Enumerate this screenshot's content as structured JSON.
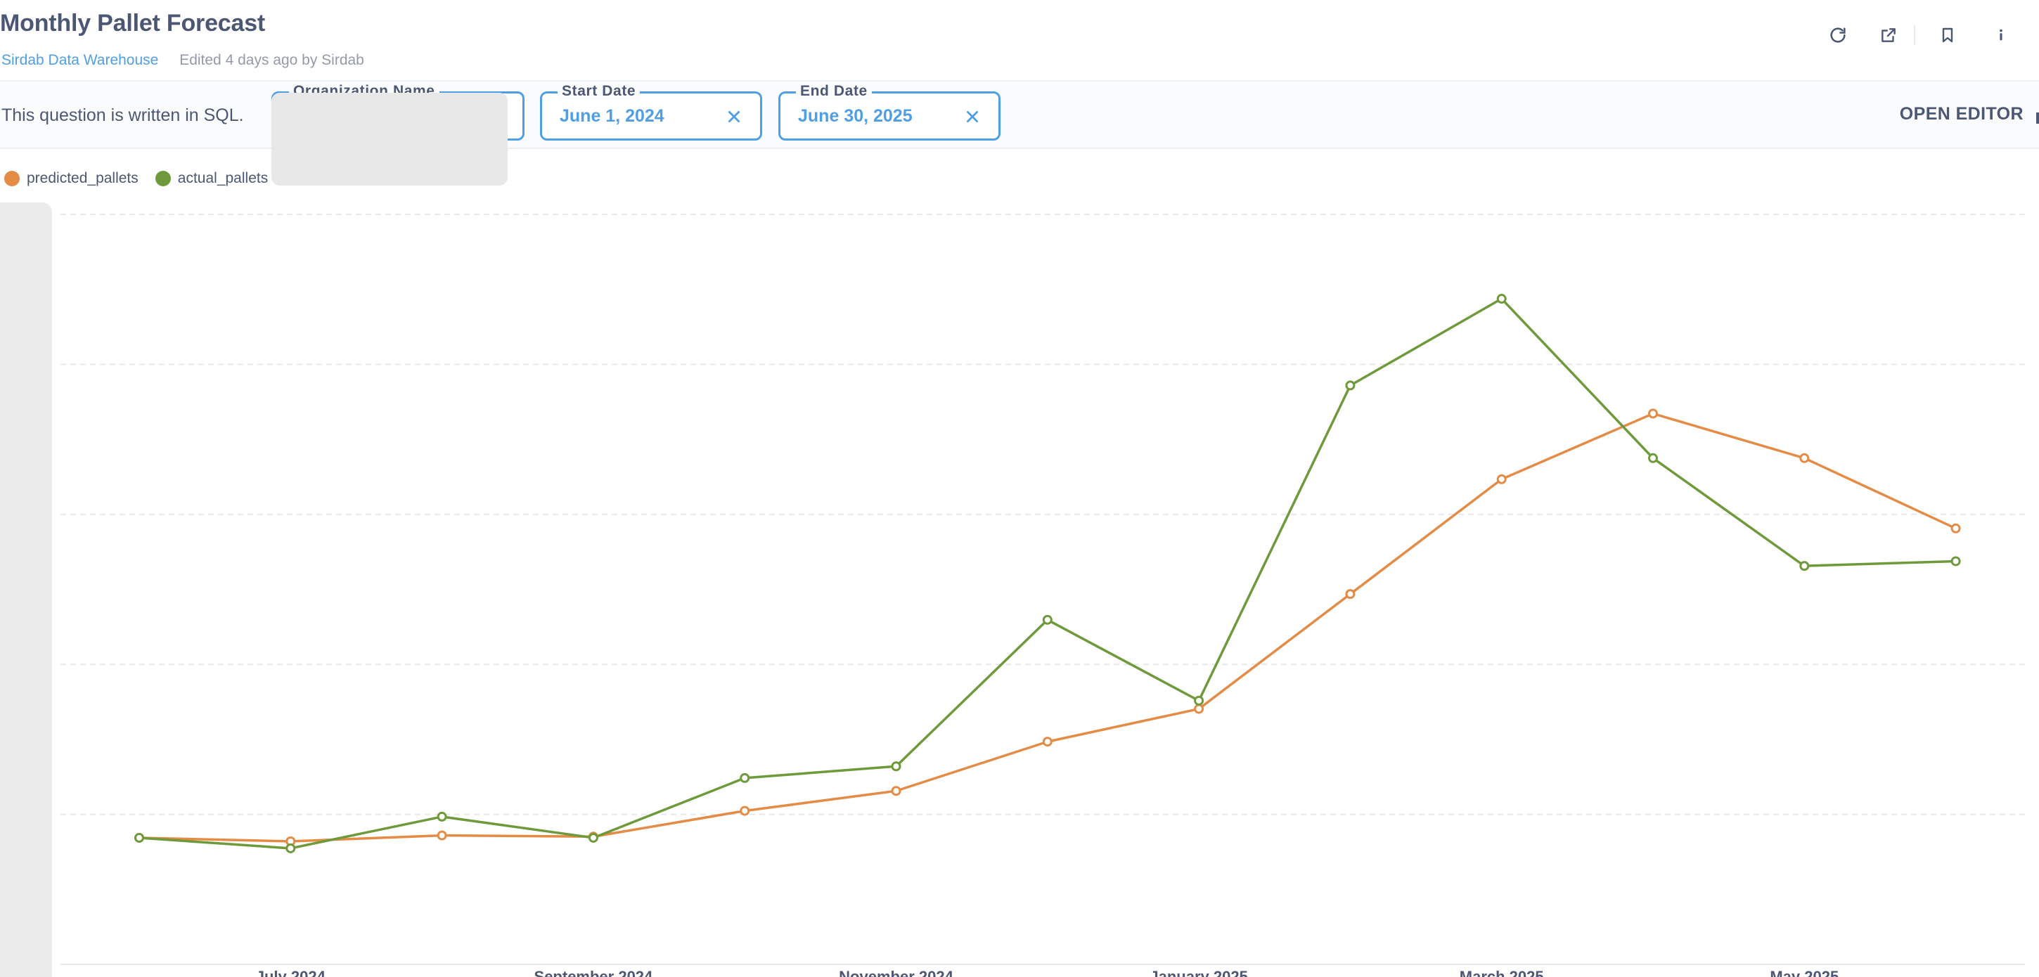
{
  "header": {
    "title": "Monthly Pallet Forecast",
    "database": "Sirdab Data Warehouse",
    "edited": "Edited 4 days ago by Sirdab",
    "icons": [
      "refresh-icon",
      "share-icon",
      "bookmark-icon",
      "info-icon"
    ]
  },
  "filterbar": {
    "sql_note": "This question is written in SQL.",
    "filters": [
      {
        "label": "Organization Name",
        "value": ""
      },
      {
        "label": "Start Date",
        "value": "June 1, 2024"
      },
      {
        "label": "End Date",
        "value": "June 30, 2025"
      }
    ],
    "open_editor": "OPEN EDITOR"
  },
  "colors": {
    "predicted": "#e48b45",
    "actual": "#6e9a3c",
    "accent": "#509ee3"
  },
  "chart_data": {
    "type": "line",
    "categories": [
      "2024-06",
      "2024-07",
      "2024-08",
      "2024-09",
      "2024-10",
      "2024-11",
      "2024-12",
      "2025-01",
      "2025-02",
      "2025-03",
      "2025-04",
      "2025-05",
      "2025-06"
    ],
    "x_tick_labels": [
      "July 2024",
      "September 2024",
      "November 2024",
      "January 2025",
      "March 2025",
      "May 2025"
    ],
    "x_tick_categories": [
      "2024-07",
      "2024-09",
      "2024-11",
      "2025-01",
      "2025-03",
      "2025-05"
    ],
    "series": [
      {
        "name": "predicted_pallets",
        "color": "#e48b45",
        "values": [
          5.4,
          5.25,
          5.5,
          5.45,
          6.55,
          7.4,
          9.5,
          10.9,
          15.8,
          20.7,
          23.5,
          21.6,
          18.6
        ]
      },
      {
        "name": "actual_pallets",
        "color": "#6e9a3c",
        "values": [
          5.4,
          4.95,
          6.3,
          5.4,
          7.95,
          8.45,
          14.7,
          11.25,
          24.7,
          28.4,
          21.6,
          17.0,
          17.2
        ]
      }
    ],
    "ylim": [
      0,
      32
    ],
    "grid": true,
    "legend": "top-left",
    "xlabel": "",
    "ylabel": ""
  }
}
